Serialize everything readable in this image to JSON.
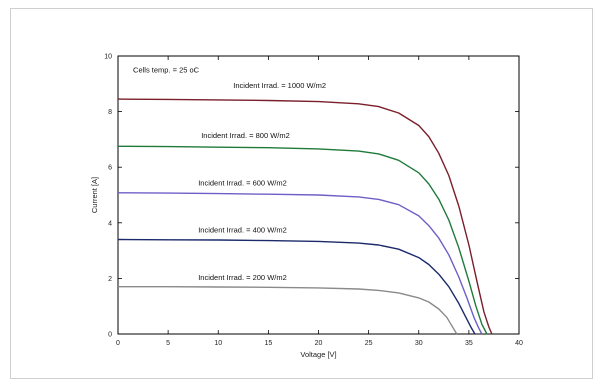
{
  "chart_data": {
    "type": "line",
    "title": "",
    "xlabel": "Voltage [V]",
    "ylabel": "Current [A]",
    "xlim": [
      0,
      40
    ],
    "ylim": [
      0,
      10
    ],
    "xticks": [
      0,
      5,
      10,
      15,
      20,
      25,
      30,
      35,
      40
    ],
    "yticks": [
      0,
      2,
      4,
      6,
      8,
      10
    ],
    "grid": false,
    "annotations": [
      {
        "text": "Cells temp.  = 25 oC",
        "x": 1.5,
        "y": 9.4
      },
      {
        "text": "Incident Irrad. = 1000 W/m2",
        "x": 11.5,
        "y": 8.85
      },
      {
        "text": "Incident Irrad. = 800 W/m2",
        "x": 8.3,
        "y": 7.05
      },
      {
        "text": "Incident Irrad. = 600 W/m2",
        "x": 8.0,
        "y": 5.35
      },
      {
        "text": "Incident Irrad. = 400 W/m2",
        "x": 8.0,
        "y": 3.65
      },
      {
        "text": "Incident Irrad. = 200 W/m2",
        "x": 8.0,
        "y": 1.95
      }
    ],
    "series": [
      {
        "name": "Incident Irrad. = 1000 W/m2",
        "color": "#7a1f2b",
        "x": [
          0,
          5,
          10,
          15,
          20,
          24,
          26,
          28,
          30,
          31,
          32,
          33,
          34,
          35,
          35.8,
          36.5,
          37.0,
          37.3
        ],
        "y": [
          8.45,
          8.44,
          8.42,
          8.4,
          8.36,
          8.28,
          8.18,
          7.95,
          7.5,
          7.1,
          6.5,
          5.7,
          4.6,
          3.2,
          1.9,
          0.8,
          0.25,
          0
        ]
      },
      {
        "name": "Incident Irrad. = 800 W/m2",
        "color": "#1f7a3a",
        "x": [
          0,
          5,
          10,
          15,
          20,
          24,
          26,
          28,
          30,
          31,
          32,
          33,
          34,
          35,
          35.7,
          36.3,
          36.8
        ],
        "y": [
          6.75,
          6.74,
          6.72,
          6.7,
          6.66,
          6.58,
          6.48,
          6.25,
          5.8,
          5.4,
          4.85,
          4.1,
          3.1,
          1.9,
          1.0,
          0.35,
          0
        ]
      },
      {
        "name": "Incident Irrad. = 600 W/m2",
        "color": "#6e5fc7",
        "x": [
          0,
          5,
          10,
          15,
          20,
          24,
          26,
          28,
          30,
          31,
          32,
          33,
          34,
          34.8,
          35.5,
          36.0,
          36.3
        ],
        "y": [
          5.08,
          5.07,
          5.05,
          5.03,
          5.0,
          4.93,
          4.84,
          4.65,
          4.25,
          3.9,
          3.45,
          2.85,
          2.05,
          1.3,
          0.6,
          0.2,
          0
        ]
      },
      {
        "name": "Incident Irrad. = 400 W/m2",
        "color": "#1c2a6b",
        "x": [
          0,
          5,
          10,
          15,
          20,
          24,
          26,
          28,
          30,
          31,
          32,
          33,
          34,
          34.7,
          35.2,
          35.6
        ],
        "y": [
          3.4,
          3.39,
          3.38,
          3.36,
          3.33,
          3.27,
          3.2,
          3.05,
          2.75,
          2.5,
          2.15,
          1.7,
          1.1,
          0.6,
          0.25,
          0
        ]
      },
      {
        "name": "Incident Irrad. = 200 W/m2",
        "color": "#8a8a8a",
        "x": [
          0,
          5,
          10,
          15,
          20,
          24,
          26,
          28,
          30,
          31,
          32,
          32.8,
          33.3,
          33.8
        ],
        "y": [
          1.7,
          1.7,
          1.69,
          1.68,
          1.66,
          1.62,
          1.57,
          1.48,
          1.3,
          1.15,
          0.9,
          0.6,
          0.3,
          0
        ]
      }
    ]
  }
}
